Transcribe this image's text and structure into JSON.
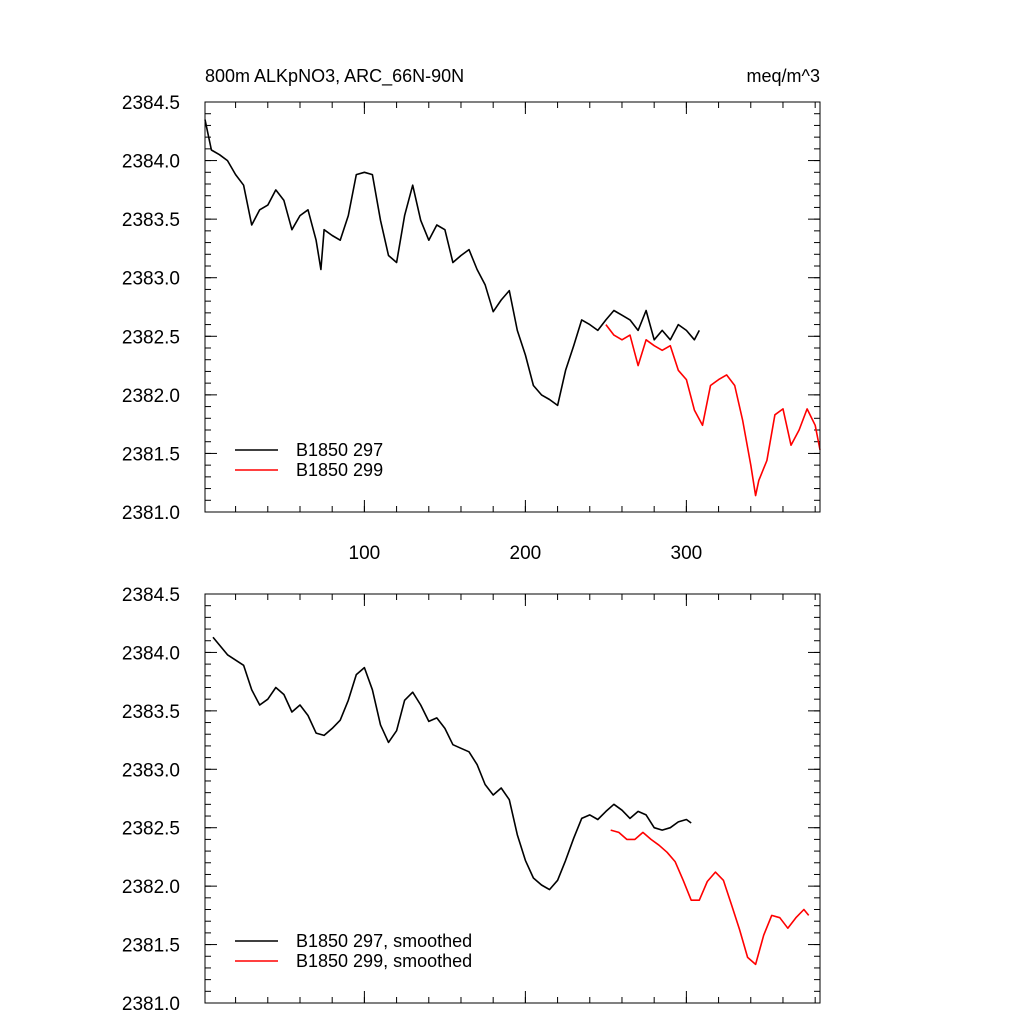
{
  "chart_data": [
    {
      "type": "line",
      "title": "800m ALKpNO3, ARC_66N-90N",
      "units": "meq/m^3",
      "xlim": [
        1,
        383
      ],
      "xticks": [
        100,
        200,
        300
      ],
      "xtick_labels": true,
      "ylim": [
        2381,
        2384.5
      ],
      "yticks": [
        {
          "value": 2381,
          "label": "2381.0"
        },
        2381.5,
        {
          "value": 2382,
          "label": "2382.0"
        },
        2382.5,
        {
          "value": 2383,
          "label": "2383.0"
        },
        2383.5,
        {
          "value": 2384,
          "label": "2384.0"
        },
        2384.5
      ],
      "minor_ticks": 5,
      "legend": "lower left",
      "series": [
        {
          "name": "B1850 297",
          "color": "#000000",
          "x": [
            1,
            5,
            10,
            15,
            20,
            25,
            30,
            35,
            40,
            45,
            50,
            55,
            60,
            65,
            70,
            73,
            75,
            80,
            85,
            90,
            95,
            100,
            105,
            110,
            115,
            120,
            125,
            130,
            135,
            140,
            145,
            150,
            155,
            160,
            165,
            170,
            175,
            180,
            185,
            190,
            195,
            200,
            205,
            210,
            215,
            220,
            225,
            230,
            235,
            240,
            245,
            250,
            255,
            260,
            265,
            270,
            275,
            280,
            285,
            290,
            295,
            300,
            305,
            308
          ],
          "values": [
            2384.35,
            2384.09,
            2384.05,
            2384.0,
            2383.88,
            2383.79,
            2383.45,
            2383.58,
            2383.62,
            2383.75,
            2383.66,
            2383.41,
            2383.53,
            2383.58,
            2383.32,
            2383.07,
            2383.41,
            2383.36,
            2383.32,
            2383.53,
            2383.88,
            2383.9,
            2383.88,
            2383.49,
            2383.19,
            2383.13,
            2383.53,
            2383.79,
            2383.49,
            2383.32,
            2383.45,
            2383.41,
            2383.13,
            2383.19,
            2383.24,
            2383.07,
            2382.94,
            2382.71,
            2382.81,
            2382.89,
            2382.55,
            2382.34,
            2382.08,
            2382.0,
            2381.96,
            2381.91,
            2382.21,
            2382.42,
            2382.64,
            2382.6,
            2382.55,
            2382.64,
            2382.72,
            2382.68,
            2382.64,
            2382.55,
            2382.72,
            2382.47,
            2382.55,
            2382.47,
            2382.6,
            2382.55,
            2382.47,
            2382.55
          ]
        },
        {
          "name": "B1850 299",
          "color": "#ff0000",
          "x": [
            250,
            255,
            260,
            265,
            270,
            275,
            280,
            285,
            290,
            295,
            300,
            305,
            310,
            315,
            320,
            325,
            330,
            335,
            340,
            343,
            345,
            350,
            355,
            360,
            365,
            370,
            375,
            380,
            383
          ],
          "values": [
            2382.6,
            2382.51,
            2382.47,
            2382.51,
            2382.25,
            2382.47,
            2382.42,
            2382.38,
            2382.42,
            2382.21,
            2382.13,
            2381.87,
            2381.74,
            2382.08,
            2382.13,
            2382.17,
            2382.08,
            2381.78,
            2381.4,
            2381.14,
            2381.27,
            2381.44,
            2381.83,
            2381.88,
            2381.57,
            2381.7,
            2381.88,
            2381.74,
            2381.53
          ]
        }
      ]
    },
    {
      "type": "line",
      "xlim": [
        1,
        383
      ],
      "xticks": [
        100,
        200,
        300
      ],
      "xtick_labels": false,
      "ylim": [
        2381,
        2384.5
      ],
      "yticks": [
        {
          "value": 2381,
          "label": "2381.0"
        },
        2381.5,
        {
          "value": 2382,
          "label": "2382.0"
        },
        2382.5,
        {
          "value": 2383,
          "label": "2383.0"
        },
        2383.5,
        {
          "value": 2384,
          "label": "2384.0"
        },
        2384.5
      ],
      "minor_ticks": 5,
      "legend": "lower left",
      "series": [
        {
          "name": "B1850 297, smoothed",
          "color": "#000000",
          "x": [
            6,
            15,
            25,
            30,
            35,
            40,
            45,
            50,
            55,
            60,
            65,
            70,
            75,
            80,
            85,
            90,
            95,
            100,
            105,
            110,
            115,
            120,
            125,
            130,
            135,
            140,
            145,
            150,
            155,
            160,
            165,
            170,
            175,
            180,
            185,
            190,
            195,
            200,
            205,
            210,
            215,
            220,
            225,
            230,
            235,
            240,
            245,
            250,
            255,
            260,
            265,
            270,
            275,
            280,
            285,
            290,
            295,
            300,
            303
          ],
          "values": [
            2384.13,
            2383.98,
            2383.89,
            2383.68,
            2383.55,
            2383.6,
            2383.7,
            2383.64,
            2383.49,
            2383.55,
            2383.46,
            2383.31,
            2383.29,
            2383.35,
            2383.42,
            2383.59,
            2383.81,
            2383.87,
            2383.68,
            2383.38,
            2383.23,
            2383.33,
            2383.59,
            2383.66,
            2383.55,
            2383.41,
            2383.44,
            2383.35,
            2383.21,
            2383.18,
            2383.15,
            2383.04,
            2382.87,
            2382.78,
            2382.84,
            2382.74,
            2382.44,
            2382.22,
            2382.07,
            2382.01,
            2381.97,
            2382.05,
            2382.22,
            2382.41,
            2382.58,
            2382.61,
            2382.57,
            2382.64,
            2382.7,
            2382.65,
            2382.58,
            2382.64,
            2382.61,
            2382.5,
            2382.48,
            2382.5,
            2382.55,
            2382.57,
            2382.54
          ]
        },
        {
          "name": "B1850 299, smoothed",
          "color": "#ff0000",
          "x": [
            253,
            258,
            263,
            268,
            273,
            278,
            283,
            288,
            293,
            298,
            303,
            308,
            313,
            318,
            323,
            328,
            333,
            338,
            343,
            348,
            353,
            358,
            363,
            368,
            373,
            376
          ],
          "values": [
            2382.48,
            2382.46,
            2382.4,
            2382.4,
            2382.46,
            2382.4,
            2382.35,
            2382.29,
            2382.21,
            2382.05,
            2381.88,
            2381.88,
            2382.04,
            2382.12,
            2382.05,
            2381.84,
            2381.63,
            2381.39,
            2381.33,
            2381.58,
            2381.75,
            2381.73,
            2381.64,
            2381.73,
            2381.8,
            2381.75
          ]
        }
      ]
    }
  ]
}
